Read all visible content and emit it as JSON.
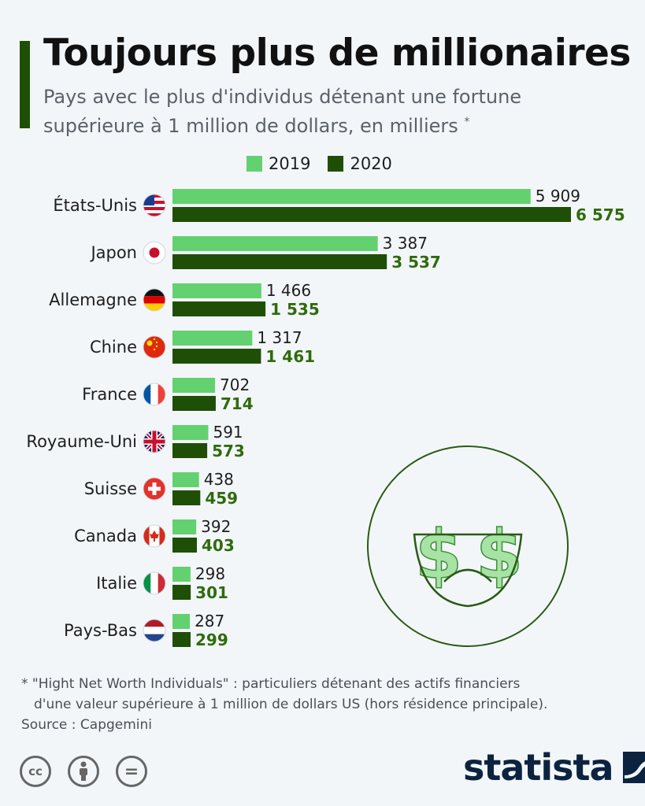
{
  "header": {
    "title": "Toujours plus de millionaires",
    "subtitle": "Pays avec le plus d'individus détenant une fortune supérieure à 1 million de dollars, en milliers",
    "subtitle_marker": "*"
  },
  "legend": {
    "series_2019": "2019",
    "series_2020": "2020"
  },
  "colors": {
    "series_2019": "#63d16f",
    "series_2020": "#1f4f06",
    "accent": "#1f4f06",
    "label_2020": "#2f6b0d"
  },
  "chart_data": {
    "type": "bar",
    "orientation": "horizontal",
    "categories": [
      "États-Unis",
      "Japon",
      "Allemagne",
      "Chine",
      "France",
      "Royaume-Uni",
      "Suisse",
      "Canada",
      "Italie",
      "Pays-Bas"
    ],
    "flags": [
      "us-flag-icon",
      "japan-flag-icon",
      "germany-flag-icon",
      "china-flag-icon",
      "france-flag-icon",
      "uk-flag-icon",
      "switzerland-flag-icon",
      "canada-flag-icon",
      "italy-flag-icon",
      "netherlands-flag-icon"
    ],
    "series": [
      {
        "name": "2019",
        "values": [
          5909,
          3387,
          1466,
          1317,
          702,
          591,
          438,
          392,
          298,
          287
        ],
        "labels": [
          "5 909",
          "3 387",
          "1 466",
          "1 317",
          "702",
          "591",
          "438",
          "392",
          "298",
          "287"
        ]
      },
      {
        "name": "2020",
        "values": [
          6575,
          3537,
          1535,
          1461,
          714,
          573,
          459,
          403,
          301,
          299
        ],
        "labels": [
          "6 575",
          "3 537",
          "1 535",
          "1 461",
          "714",
          "573",
          "459",
          "403",
          "301",
          "299"
        ]
      }
    ],
    "xlim": [
      0,
      6575
    ],
    "grid": false,
    "legend_position": "top"
  },
  "illustration": {
    "name": "money-eyes-smiley-icon",
    "dollar_glyph": "$"
  },
  "footnote": {
    "line1": "* \"Hight Net Worth Individuals\" : particuliers détenant des actifs financiers",
    "line2": "d'une valeur supérieure à 1 million de dollars US (hors résidence principale)."
  },
  "source": "Source : Capgemini",
  "license_icons": {
    "cc": "cc",
    "equals": "="
  },
  "brand": {
    "name": "statista"
  }
}
